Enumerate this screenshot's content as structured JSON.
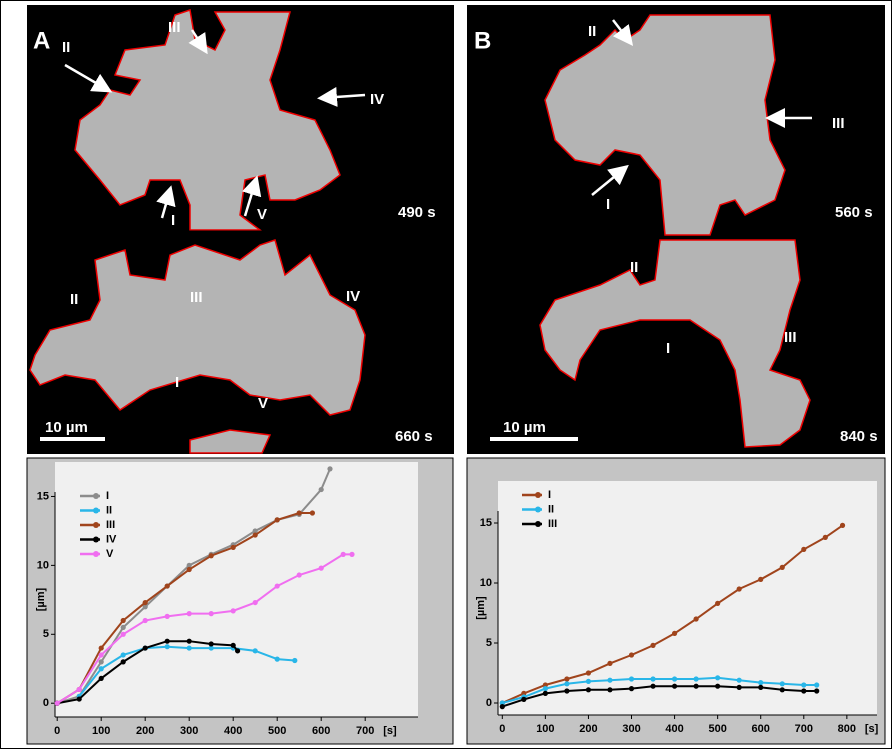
{
  "panels": [
    {
      "label": "A",
      "top_time": "490 s",
      "bottom_time": "660 s",
      "scale_bar": "10 µm",
      "top_annotations": [
        "II",
        "III",
        "IV",
        "I",
        "V"
      ],
      "bottom_annotations": [
        "II",
        "III",
        "IV",
        "I",
        "V"
      ]
    },
    {
      "label": "B",
      "top_time": "560 s",
      "bottom_time": "840 s",
      "scale_bar": "10 µm",
      "top_annotations": [
        "II",
        "III",
        "I"
      ],
      "bottom_annotations": [
        "II",
        "I",
        "III"
      ]
    }
  ],
  "chart_data": [
    {
      "type": "line",
      "x_label": "[s]",
      "y_label": "[µm]",
      "xlim": [
        -5,
        820
      ],
      "ylim": [
        -1,
        17.5
      ],
      "xticks": [
        0,
        100,
        200,
        300,
        400,
        500,
        600,
        700
      ],
      "yticks": [
        0,
        5,
        10,
        15
      ],
      "series": [
        {
          "name": "I",
          "color": "#8c8c8c",
          "x": [
            0,
            50,
            100,
            150,
            200,
            250,
            300,
            350,
            400,
            450,
            500,
            550,
            600,
            620
          ],
          "values": [
            0,
            0.5,
            3,
            5.5,
            7,
            8.5,
            10,
            10.8,
            11.5,
            12.5,
            13.3,
            13.7,
            15.5,
            17
          ]
        },
        {
          "name": "II",
          "color": "#29b6e8",
          "x": [
            50,
            100,
            150,
            200,
            250,
            300,
            350,
            400,
            450,
            500,
            540
          ],
          "values": [
            0.5,
            2.5,
            3.5,
            4,
            4.1,
            4,
            4,
            4,
            3.8,
            3.2,
            3.1
          ]
        },
        {
          "name": "III",
          "color": "#a0441c",
          "x": [
            0,
            50,
            100,
            150,
            200,
            250,
            300,
            350,
            400,
            450,
            500,
            550,
            580
          ],
          "values": [
            0,
            1,
            4,
            6,
            7.3,
            8.5,
            9.7,
            10.7,
            11.3,
            12.2,
            13.3,
            13.8,
            13.8
          ]
        },
        {
          "name": "IV",
          "color": "#000000",
          "x": [
            0,
            50,
            100,
            150,
            200,
            250,
            300,
            350,
            400,
            410
          ],
          "values": [
            0,
            0.3,
            1.8,
            3,
            4,
            4.5,
            4.5,
            4.3,
            4.2,
            3.8
          ]
        },
        {
          "name": "V",
          "color": "#f06ef0",
          "x": [
            0,
            50,
            100,
            150,
            200,
            250,
            300,
            350,
            400,
            450,
            500,
            550,
            600,
            650,
            670
          ],
          "values": [
            0,
            1,
            3.5,
            5,
            6,
            6.3,
            6.5,
            6.5,
            6.7,
            7.3,
            8.5,
            9.3,
            9.8,
            10.8,
            10.8
          ]
        }
      ]
    },
    {
      "type": "line",
      "x_label": "[s]",
      "y_label": "[µm]",
      "xlim": [
        -10,
        870
      ],
      "ylim": [
        -1,
        18.5
      ],
      "xticks": [
        0,
        100,
        200,
        300,
        400,
        500,
        600,
        700,
        800
      ],
      "yticks": [
        0,
        5,
        10,
        15
      ],
      "series": [
        {
          "name": "I",
          "color": "#a0441c",
          "x": [
            0,
            50,
            100,
            150,
            200,
            250,
            300,
            350,
            400,
            450,
            500,
            550,
            600,
            650,
            700,
            750,
            790
          ],
          "values": [
            0,
            0.8,
            1.5,
            2,
            2.5,
            3.3,
            4,
            4.8,
            5.8,
            7,
            8.3,
            9.5,
            10.3,
            11.3,
            12.8,
            13.8,
            14.8
          ]
        },
        {
          "name": "II",
          "color": "#29b6e8",
          "x": [
            0,
            50,
            100,
            150,
            200,
            250,
            300,
            350,
            400,
            450,
            500,
            550,
            600,
            650,
            700,
            730
          ],
          "values": [
            0,
            0.5,
            1.2,
            1.6,
            1.8,
            1.9,
            2,
            2,
            2,
            2,
            2.1,
            1.9,
            1.7,
            1.6,
            1.5,
            1.5
          ]
        },
        {
          "name": "III",
          "color": "#000000",
          "x": [
            0,
            50,
            100,
            150,
            200,
            250,
            300,
            350,
            400,
            450,
            500,
            550,
            600,
            650,
            700,
            730
          ],
          "values": [
            -0.3,
            0.3,
            0.8,
            1,
            1.1,
            1.1,
            1.2,
            1.4,
            1.4,
            1.4,
            1.4,
            1.3,
            1.3,
            1.1,
            1,
            1
          ]
        }
      ]
    }
  ]
}
